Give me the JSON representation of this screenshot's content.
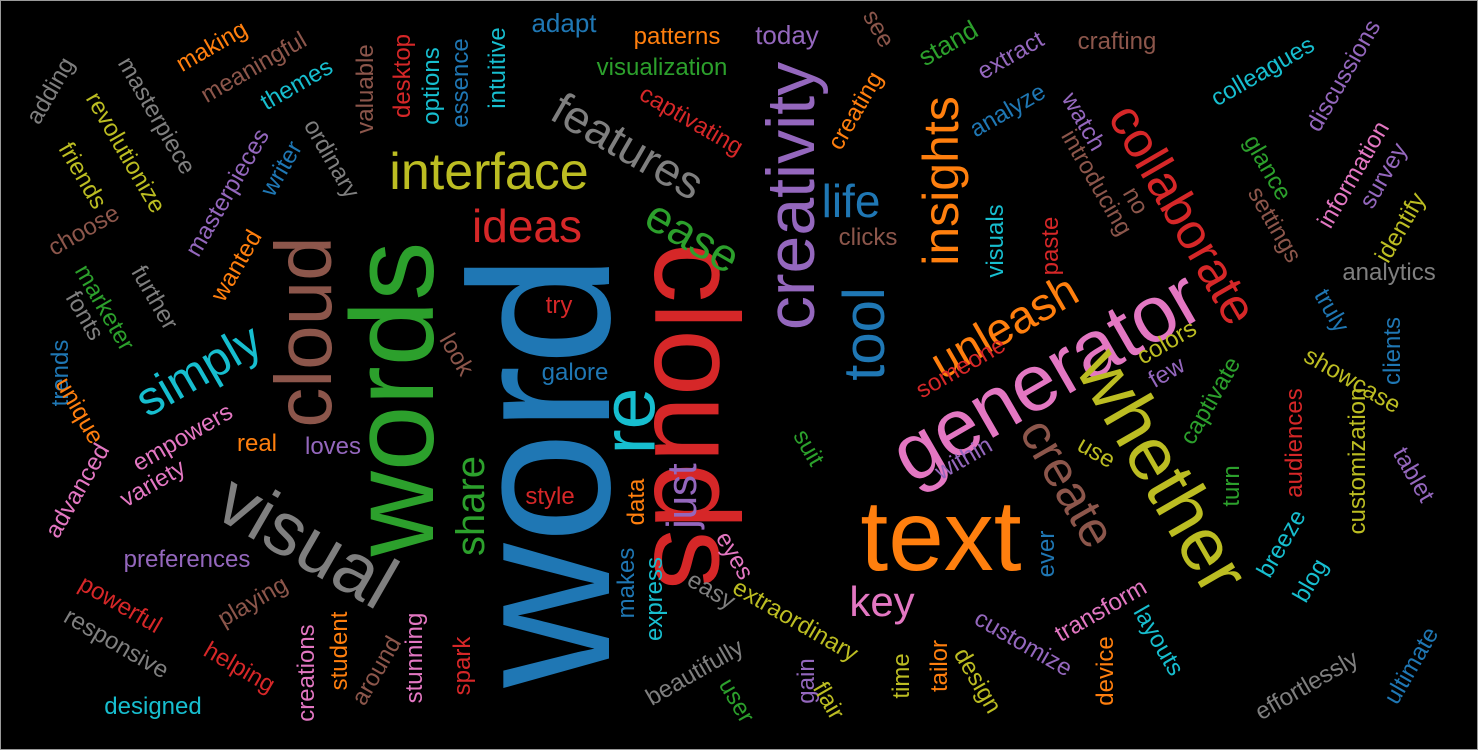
{
  "palette": {
    "blue": "#1f77b4",
    "orange": "#ff7f0e",
    "green": "#2ca02c",
    "red": "#d62728",
    "purple": "#9467bd",
    "brown": "#8c564b",
    "pink": "#e377c2",
    "gray": "#7f7f7f",
    "olive": "#bcbd22",
    "cyan": "#17becf"
  },
  "words": [
    {
      "text": "word",
      "color": "blue"
    },
    {
      "text": "text",
      "color": "orange"
    },
    {
      "text": "clouds",
      "color": "red"
    },
    {
      "text": "words",
      "color": "green"
    },
    {
      "text": "visual",
      "color": "gray"
    },
    {
      "text": "generator",
      "color": "pink"
    },
    {
      "text": "whether",
      "color": "olive"
    },
    {
      "text": "creativity",
      "color": "purple"
    },
    {
      "text": "cloud",
      "color": "brown"
    },
    {
      "text": "re",
      "color": "cyan"
    },
    {
      "text": "collaborate",
      "color": "red"
    },
    {
      "text": "interface",
      "color": "olive"
    },
    {
      "text": "features",
      "color": "gray"
    },
    {
      "text": "insights",
      "color": "orange"
    },
    {
      "text": "tool",
      "color": "blue"
    },
    {
      "text": "unleash",
      "color": "orange"
    },
    {
      "text": "create",
      "color": "brown"
    },
    {
      "text": "ease",
      "color": "green"
    },
    {
      "text": "ideas",
      "color": "red"
    },
    {
      "text": "simply",
      "color": "cyan"
    },
    {
      "text": "life",
      "color": "blue"
    },
    {
      "text": "just",
      "color": "purple"
    },
    {
      "text": "share",
      "color": "green"
    },
    {
      "text": "key",
      "color": "pink"
    },
    {
      "text": "adapt",
      "color": "blue"
    },
    {
      "text": "patterns",
      "color": "orange"
    },
    {
      "text": "today",
      "color": "purple"
    },
    {
      "text": "see",
      "color": "brown"
    },
    {
      "text": "stand",
      "color": "green"
    },
    {
      "text": "crafting",
      "color": "brown"
    },
    {
      "text": "extract",
      "color": "purple"
    },
    {
      "text": "colleagues",
      "color": "cyan"
    },
    {
      "text": "discussions",
      "color": "purple"
    },
    {
      "text": "making",
      "color": "orange"
    },
    {
      "text": "meaningful",
      "color": "brown"
    },
    {
      "text": "themes",
      "color": "cyan"
    },
    {
      "text": "masterpiece",
      "color": "gray"
    },
    {
      "text": "adding",
      "color": "gray"
    },
    {
      "text": "revolutionize",
      "color": "olive"
    },
    {
      "text": "friends",
      "color": "olive"
    },
    {
      "text": "valuable",
      "color": "brown"
    },
    {
      "text": "desktop",
      "color": "red"
    },
    {
      "text": "options",
      "color": "cyan"
    },
    {
      "text": "essence",
      "color": "blue"
    },
    {
      "text": "intuitive",
      "color": "cyan"
    },
    {
      "text": "visualization",
      "color": "green"
    },
    {
      "text": "captivating",
      "color": "red"
    },
    {
      "text": "creating",
      "color": "orange"
    },
    {
      "text": "analyze",
      "color": "blue"
    },
    {
      "text": "watch",
      "color": "purple"
    },
    {
      "text": "introducing",
      "color": "brown"
    },
    {
      "text": "glance",
      "color": "green"
    },
    {
      "text": "information",
      "color": "pink"
    },
    {
      "text": "survey",
      "color": "purple"
    },
    {
      "text": "identify",
      "color": "olive"
    },
    {
      "text": "masterpieces",
      "color": "purple"
    },
    {
      "text": "writer",
      "color": "blue"
    },
    {
      "text": "ordinary",
      "color": "gray"
    },
    {
      "text": "choose",
      "color": "brown"
    },
    {
      "text": "wanted",
      "color": "orange"
    },
    {
      "text": "marketer",
      "color": "green"
    },
    {
      "text": "fonts",
      "color": "gray"
    },
    {
      "text": "further",
      "color": "gray"
    },
    {
      "text": "clicks",
      "color": "brown"
    },
    {
      "text": "paste",
      "color": "red"
    },
    {
      "text": "no",
      "color": "brown"
    },
    {
      "text": "settings",
      "color": "brown"
    },
    {
      "text": "visuals",
      "color": "cyan"
    },
    {
      "text": "analytics",
      "color": "gray"
    },
    {
      "text": "truly",
      "color": "blue"
    },
    {
      "text": "trends",
      "color": "blue"
    },
    {
      "text": "unique",
      "color": "orange"
    },
    {
      "text": "empowers",
      "color": "pink"
    },
    {
      "text": "look",
      "color": "brown"
    },
    {
      "text": "try",
      "color": "red"
    },
    {
      "text": "galore",
      "color": "blue"
    },
    {
      "text": "someone",
      "color": "red"
    },
    {
      "text": "colors",
      "color": "olive"
    },
    {
      "text": "few",
      "color": "purple"
    },
    {
      "text": "clients",
      "color": "blue"
    },
    {
      "text": "showcase",
      "color": "olive"
    },
    {
      "text": "advanced",
      "color": "pink"
    },
    {
      "text": "variety",
      "color": "pink"
    },
    {
      "text": "real",
      "color": "orange"
    },
    {
      "text": "loves",
      "color": "purple"
    },
    {
      "text": "style",
      "color": "red"
    },
    {
      "text": "data",
      "color": "orange"
    },
    {
      "text": "suit",
      "color": "green"
    },
    {
      "text": "within",
      "color": "purple"
    },
    {
      "text": "use",
      "color": "olive"
    },
    {
      "text": "captivate",
      "color": "green"
    },
    {
      "text": "audiences",
      "color": "red"
    },
    {
      "text": "customization",
      "color": "olive"
    },
    {
      "text": "tablet",
      "color": "purple"
    },
    {
      "text": "preferences",
      "color": "purple"
    },
    {
      "text": "makes",
      "color": "blue"
    },
    {
      "text": "express",
      "color": "cyan"
    },
    {
      "text": "eyes",
      "color": "pink"
    },
    {
      "text": "ever",
      "color": "blue"
    },
    {
      "text": "turn",
      "color": "green"
    },
    {
      "text": "breeze",
      "color": "cyan"
    },
    {
      "text": "blog",
      "color": "cyan"
    },
    {
      "text": "powerful",
      "color": "red"
    },
    {
      "text": "responsive",
      "color": "gray"
    },
    {
      "text": "playing",
      "color": "brown"
    },
    {
      "text": "easy",
      "color": "gray"
    },
    {
      "text": "extraordinary",
      "color": "olive"
    },
    {
      "text": "customize",
      "color": "purple"
    },
    {
      "text": "transform",
      "color": "pink"
    },
    {
      "text": "layouts",
      "color": "cyan"
    },
    {
      "text": "helping",
      "color": "red"
    },
    {
      "text": "creations",
      "color": "pink"
    },
    {
      "text": "student",
      "color": "orange"
    },
    {
      "text": "around",
      "color": "brown"
    },
    {
      "text": "stunning",
      "color": "pink"
    },
    {
      "text": "spark",
      "color": "red"
    },
    {
      "text": "beautifully",
      "color": "gray"
    },
    {
      "text": "gain",
      "color": "purple"
    },
    {
      "text": "user",
      "color": "green"
    },
    {
      "text": "flair",
      "color": "olive"
    },
    {
      "text": "time",
      "color": "olive"
    },
    {
      "text": "tailor",
      "color": "orange"
    },
    {
      "text": "design",
      "color": "olive"
    },
    {
      "text": "device",
      "color": "orange"
    },
    {
      "text": "effortlessly",
      "color": "gray"
    },
    {
      "text": "ultimate",
      "color": "blue"
    },
    {
      "text": "designed",
      "color": "cyan"
    }
  ]
}
